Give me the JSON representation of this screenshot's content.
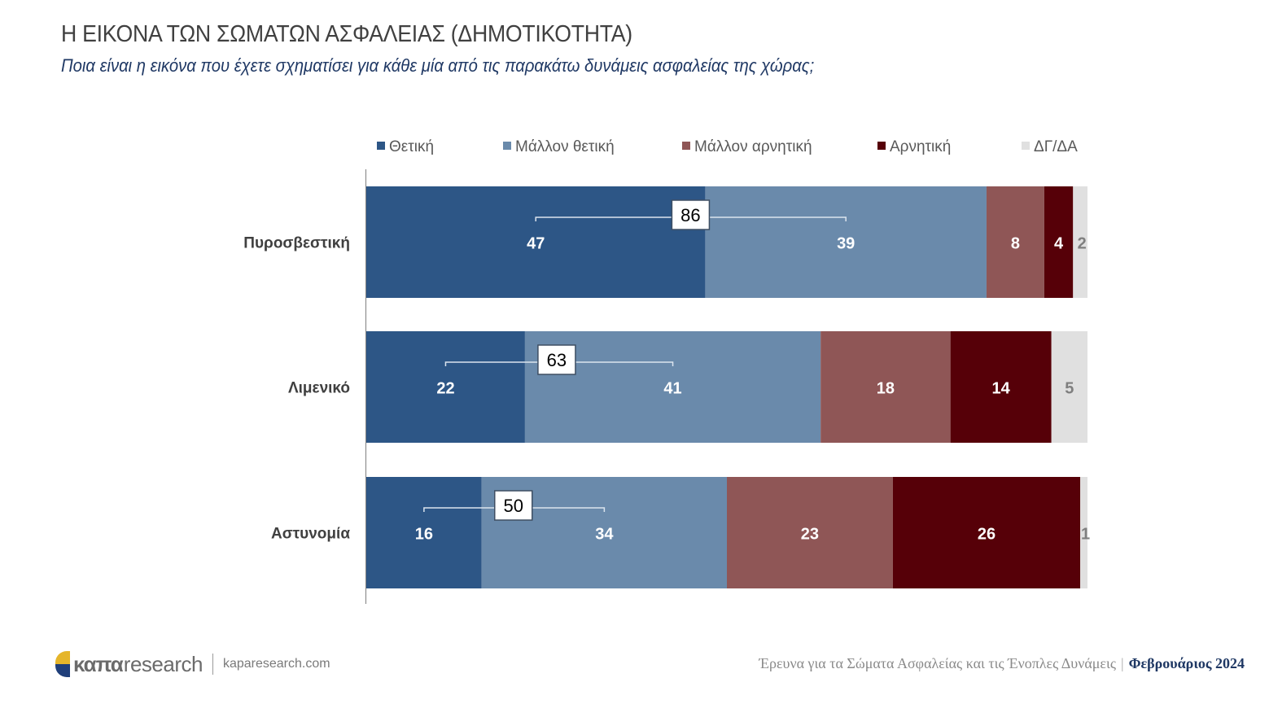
{
  "header": {
    "title": "Η ΕΙΚΟΝΑ ΤΩΝ ΣΩΜΑΤΩΝ ΑΣΦΑΛΕΙΑΣ (ΔΗΜΟΤΙΚΟΤΗΤΑ)",
    "subtitle": "Ποια είναι η εικόνα που έχετε σχηματίσει για κάθε μία από τις παρακάτω δυνάμεις ασφαλείας της χώρας;"
  },
  "chart_data": {
    "type": "bar",
    "orientation": "horizontal-stacked-100",
    "title": "Η ΕΙΚΟΝΑ ΤΩΝ ΣΩΜΑΤΩΝ ΑΣΦΑΛΕΙΑΣ (ΔΗΜΟΤΙΚΟΤΗΤΑ)",
    "xlabel": "",
    "ylabel": "",
    "xlim": [
      0,
      100
    ],
    "grid": false,
    "legend_position": "top",
    "categories": [
      "Πυροσβεστική",
      "Λιμενικό",
      "Αστυνομία"
    ],
    "series": [
      {
        "name": "Θετική",
        "color": "#2d5686",
        "values": [
          47,
          22,
          16
        ]
      },
      {
        "name": "Μάλλον θετική",
        "color": "#6a8aab",
        "values": [
          39,
          41,
          34
        ]
      },
      {
        "name": "Μάλλον αρνητική",
        "color": "#8f5656",
        "values": [
          8,
          18,
          23
        ]
      },
      {
        "name": "Αρνητική",
        "color": "#560008",
        "values": [
          4,
          14,
          26
        ]
      },
      {
        "name": "ΔΓ/ΔΑ",
        "color": "#e0e0e0",
        "values": [
          2,
          5,
          1
        ]
      }
    ],
    "positive_totals": [
      86,
      63,
      50
    ],
    "positive_total_label": "Θετική + Μάλλον θετική"
  },
  "footer": {
    "brand_bold": "καπα",
    "brand_light": "research",
    "url": "kaparesearch.com",
    "survey": "Έρευνα για τα Σώματα Ασφαλείας και τις Ένοπλες Δυνάμεις",
    "separator": "|",
    "date": "Φεβρουάριος 2024"
  }
}
